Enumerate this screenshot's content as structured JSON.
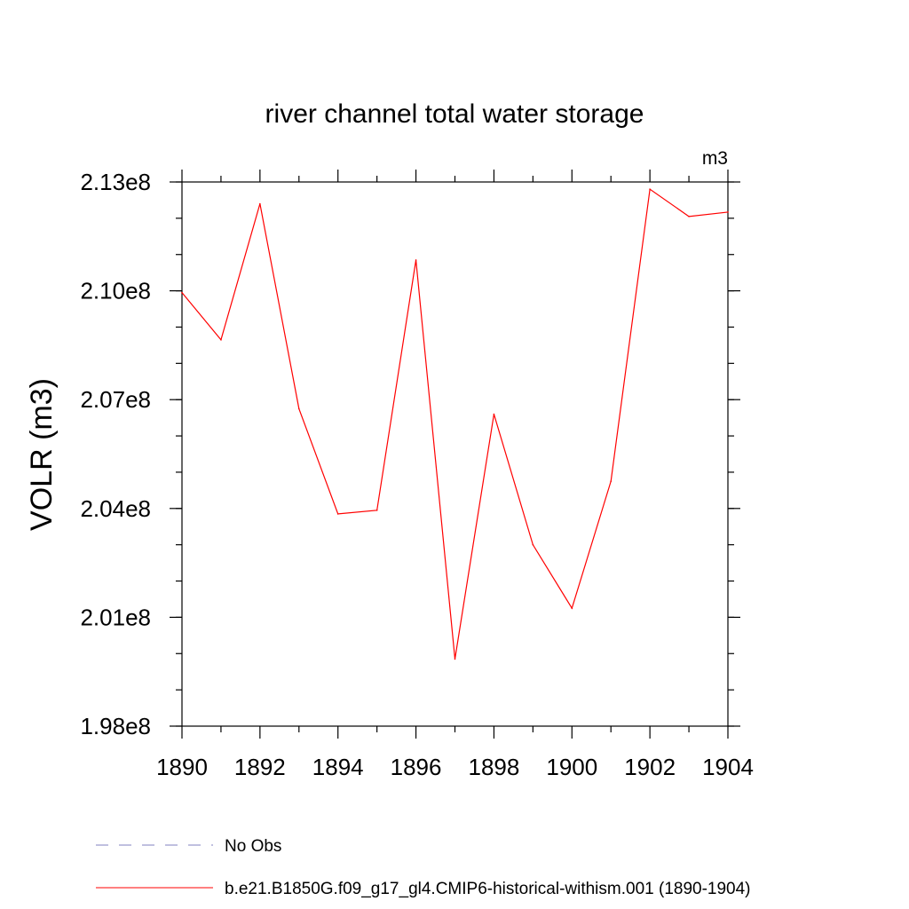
{
  "chart_data": {
    "type": "line",
    "title": "river channel total water storage",
    "units_label": "m3",
    "ylabel": "VOLR  (m3)",
    "xlabel": "",
    "xlim": [
      1890,
      1904
    ],
    "ylim": [
      198000000.0,
      213000000.0
    ],
    "x_ticks": [
      1890,
      1892,
      1894,
      1896,
      1898,
      1900,
      1902,
      1904
    ],
    "x_tick_labels": [
      "1890",
      "1892",
      "1894",
      "1896",
      "1898",
      "1900",
      "1902",
      "1904"
    ],
    "y_ticks": [
      198000000.0,
      201000000.0,
      204000000.0,
      207000000.0,
      210000000.0,
      213000000.0
    ],
    "y_tick_labels": [
      "1.98e8",
      "2.01e8",
      "2.04e8",
      "2.07e8",
      "2.10e8",
      "2.13e8"
    ],
    "y_minor_step": 1000000.0,
    "grid": false,
    "x": [
      1890,
      1891,
      1892,
      1893,
      1894,
      1895,
      1896,
      1897,
      1898,
      1899,
      1900,
      1901,
      1902,
      1903,
      1904
    ],
    "series": [
      {
        "name": "b.e21.B1850G.f09_g17_gl4.CMIP6-historical-withism.001 (1890-1904)",
        "color": "#ff0000",
        "values": [
          209950000.0,
          208650000.0,
          212400000.0,
          206750000.0,
          203850000.0,
          203950000.0,
          210850000.0,
          199850000.0,
          206600000.0,
          203000000.0,
          201250000.0,
          204750000.0,
          212800000.0,
          212050000.0,
          212170000.0
        ]
      }
    ],
    "legend": {
      "position": "bottom",
      "entries": [
        {
          "label": "No Obs",
          "style": "dashed",
          "color": "#8080c0"
        },
        {
          "label": "b.e21.B1850G.f09_g17_gl4.CMIP6-historical-withism.001 (1890-1904)",
          "style": "solid",
          "color": "#ff0000"
        }
      ]
    }
  }
}
